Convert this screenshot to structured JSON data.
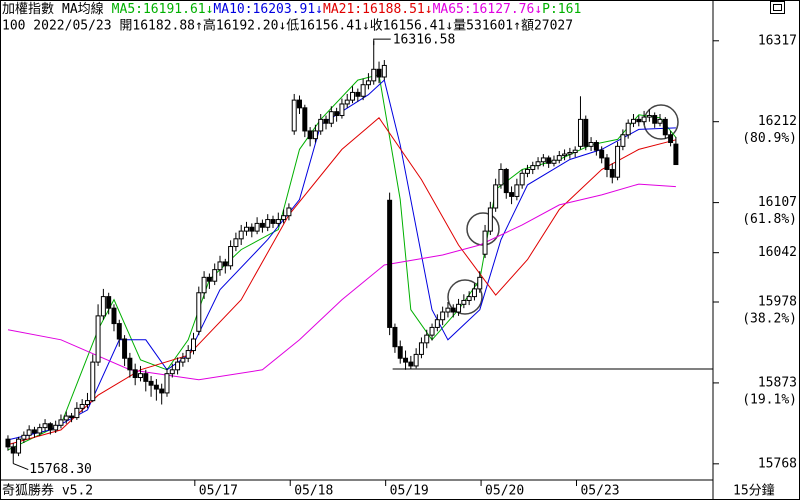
{
  "chart_data": {
    "type": "candlestick",
    "title": "加權指數",
    "subtitle": "MA均線",
    "extra": "P:161",
    "info": "100 2022/05/23 開16182.88↑高16192.20↓低16156.41↓收16156.41↓量531601↑額27027",
    "footer": "奇狐勝券 v5.2",
    "period": "15分鐘",
    "candle_colors": {
      "up_fill": "#ffffff",
      "down_fill": "#000000",
      "outline": "#000000"
    },
    "xlim": [
      -1.5,
      133
    ],
    "xticks": [
      {
        "value": 36,
        "label": "05/17"
      },
      {
        "value": 54,
        "label": "05/18"
      },
      {
        "value": 72,
        "label": "05/19"
      },
      {
        "value": 90,
        "label": "05/20"
      },
      {
        "value": 108,
        "label": "05/23"
      }
    ],
    "ylim": [
      15747,
      16331
    ],
    "yticks": [
      15768,
      15873,
      15978,
      16042,
      16107,
      16212,
      16317
    ],
    "fib_labels": [
      {
        "value": 15873,
        "label": "(19.1%)"
      },
      {
        "value": 15978,
        "label": "(38.2%)"
      },
      {
        "value": 16107,
        "label": "(61.8%)"
      },
      {
        "value": 16212,
        "label": "(80.9%)"
      }
    ],
    "horizontal_line": 15891,
    "annotations": [
      {
        "value": 16316.58,
        "label": "16316.58",
        "x": 69
      },
      {
        "value": 15768.3,
        "label": "15768.30",
        "x": 1
      }
    ],
    "open": [
      15800,
      15790,
      15782,
      15800,
      15805,
      15812,
      15808,
      15815,
      15820,
      15812,
      15818,
      15825,
      15830,
      15828,
      15840,
      15845,
      15850,
      15900,
      15960,
      15985,
      15970,
      15950,
      15930,
      15905,
      15890,
      15880,
      15885,
      15875,
      15870,
      15865,
      15860,
      15885,
      15890,
      15900,
      15905,
      15915,
      15940,
      15990,
      16010,
      16005,
      16020,
      16030,
      16025,
      16050,
      16060,
      16070,
      16075,
      16070,
      16080,
      16075,
      16085,
      16080,
      16085,
      16090,
      16200,
      16240,
      16230,
      16200,
      16190,
      16200,
      16215,
      16210,
      16225,
      16220,
      16235,
      16240,
      16250,
      16245,
      16260,
      16265,
      16280,
      16270,
      16110,
      15945,
      15920,
      15905,
      15900,
      15895,
      15910,
      15925,
      15935,
      15945,
      15955,
      15965,
      15970,
      15965,
      15975,
      15980,
      15985,
      15995,
      16040,
      16070,
      16100,
      16130,
      16150,
      16120,
      16115,
      16130,
      16145,
      16150,
      16155,
      16160,
      16165,
      16158,
      16162,
      16168,
      16170,
      16172,
      16180,
      16215,
      16180,
      16185,
      16175,
      16165,
      16150,
      16140,
      16180,
      16195,
      16210,
      16215,
      16212,
      16218,
      16220,
      16210,
      16215,
      16195,
      16182.88
    ],
    "high": [
      15805,
      15795,
      15803,
      15810,
      15818,
      15816,
      15820,
      15826,
      15822,
      15824,
      15832,
      15836,
      15834,
      15848,
      15852,
      15860,
      15910,
      15975,
      15995,
      15990,
      15975,
      15955,
      15935,
      15912,
      15898,
      15895,
      15890,
      15882,
      15878,
      15872,
      15892,
      15898,
      15906,
      15912,
      15922,
      15938,
      15998,
      16018,
      16015,
      16028,
      16038,
      16034,
      16058,
      16068,
      16078,
      16082,
      16080,
      16088,
      16085,
      16092,
      16090,
      16094,
      16098,
      16106,
      16248,
      16246,
      16234,
      16205,
      16208,
      16222,
      16220,
      16232,
      16230,
      16242,
      16248,
      16258,
      16255,
      16268,
      16275,
      16316.58,
      16290,
      16292,
      16120,
      15950,
      15928,
      15915,
      15908,
      15918,
      15932,
      15942,
      15950,
      15962,
      15972,
      15978,
      15975,
      15982,
      15988,
      15992,
      16002,
      16018,
      16078,
      16108,
      16138,
      16158,
      16152,
      16128,
      16138,
      16150,
      16156,
      16160,
      16166,
      16170,
      16168,
      16168,
      16174,
      16176,
      16178,
      16180,
      16245,
      16220,
      16192,
      16188,
      16180,
      16170,
      16158,
      16186,
      16202,
      16215,
      16222,
      16220,
      16226,
      16228,
      16224,
      16222,
      16218,
      16200,
      16192.2
    ],
    "low": [
      15785,
      15768.3,
      15778,
      15795,
      15800,
      15802,
      15804,
      15810,
      15806,
      15808,
      15814,
      15820,
      15822,
      15825,
      15835,
      15840,
      15848,
      15895,
      15955,
      15962,
      15940,
      15920,
      15895,
      15880,
      15870,
      15875,
      15862,
      15855,
      15850,
      15845,
      15855,
      15880,
      15884,
      15894,
      15900,
      15910,
      15935,
      15982,
      15995,
      16000,
      16012,
      16015,
      16020,
      16044,
      16052,
      16064,
      16062,
      16066,
      16068,
      16070,
      16074,
      16076,
      16080,
      16084,
      16195,
      16222,
      16192,
      16180,
      16185,
      16195,
      16202,
      16205,
      16212,
      16216,
      16230,
      16236,
      16238,
      16240,
      16254,
      16260,
      16262,
      16266,
      15935,
      15912,
      15898,
      15890,
      15891,
      15892,
      15905,
      15918,
      15928,
      15940,
      15948,
      15958,
      15958,
      15960,
      15970,
      15974,
      15980,
      15990,
      16035,
      16065,
      16095,
      16125,
      16112,
      16105,
      16110,
      16125,
      16140,
      16144,
      16150,
      16154,
      16152,
      16154,
      16158,
      16162,
      16164,
      16166,
      16176,
      16175,
      16174,
      16168,
      16158,
      16140,
      16132,
      16136,
      16175,
      16190,
      16205,
      16206,
      16208,
      16212,
      16204,
      16206,
      16190,
      16180,
      16156.41
    ],
    "close": [
      15790,
      15782,
      15800,
      15805,
      15812,
      15808,
      15815,
      15820,
      15812,
      15818,
      15825,
      15830,
      15828,
      15840,
      15845,
      15850,
      15900,
      15960,
      15985,
      15970,
      15950,
      15930,
      15905,
      15890,
      15880,
      15885,
      15875,
      15870,
      15865,
      15860,
      15885,
      15890,
      15900,
      15905,
      15915,
      15930,
      15990,
      16010,
      16005,
      16020,
      16030,
      16025,
      16050,
      16060,
      16070,
      16075,
      16070,
      16080,
      16075,
      16085,
      16080,
      16085,
      16090,
      16100,
      16240,
      16230,
      16200,
      16190,
      16200,
      16215,
      16210,
      16225,
      16220,
      16235,
      16240,
      16250,
      16245,
      16260,
      16265,
      16280,
      16270,
      16285,
      15945,
      15920,
      15905,
      15900,
      15895,
      15910,
      15925,
      15935,
      15945,
      15955,
      15965,
      15970,
      15965,
      15975,
      15980,
      15985,
      15995,
      16010,
      16070,
      16100,
      16130,
      16150,
      16120,
      16115,
      16130,
      16145,
      16150,
      16155,
      16160,
      16165,
      16158,
      16162,
      16168,
      16170,
      16172,
      16175,
      16215,
      16180,
      16185,
      16175,
      16165,
      16150,
      16140,
      16180,
      16195,
      16210,
      16215,
      16212,
      16218,
      16220,
      16210,
      16215,
      16195,
      16185,
      16156.41
    ],
    "series": [
      {
        "name": "MA5:16191.61↓",
        "color": "#00b000",
        "x": [
          0,
          10,
          17,
          20,
          25,
          30,
          34,
          38,
          44,
          51,
          55,
          59,
          66,
          70,
          74,
          76,
          80,
          85,
          89,
          92,
          97,
          104,
          110,
          115,
          119,
          123,
          126
        ],
        "values": [
          15786,
          15819,
          15942,
          15981,
          15903,
          15890,
          15929,
          16007,
          16046,
          16072,
          16176,
          16215,
          16266,
          16273,
          16111,
          15968,
          15929,
          15968,
          16007,
          16124,
          16150,
          16163,
          16182,
          16189,
          16221,
          16217,
          16191.61
        ]
      },
      {
        "name": "MA10:16203.91↓",
        "color": "#0000e0",
        "x": [
          0,
          8,
          15,
          21,
          26,
          30,
          34,
          40,
          49,
          55,
          59,
          68,
          71,
          74,
          80,
          83,
          89,
          93,
          98,
          106,
          112,
          119,
          126
        ],
        "values": [
          15799,
          15812,
          15838,
          15929,
          15929,
          15890,
          15909,
          15994,
          16059,
          16111,
          16208,
          16247,
          16266,
          16182,
          15968,
          15929,
          15968,
          16059,
          16130,
          16163,
          16176,
          16202,
          16203.91
        ]
      },
      {
        "name": "MA21:16188.51↓",
        "color": "#e00000",
        "x": [
          0,
          10,
          17,
          25,
          34,
          44,
          53,
          63,
          70,
          78,
          85,
          92,
          98,
          104,
          112,
          119,
          126
        ],
        "values": [
          15793,
          15812,
          15857,
          15890,
          15909,
          15981,
          16091,
          16176,
          16217,
          16137,
          16052,
          15987,
          16033,
          16098,
          16150,
          16176,
          16188.51
        ]
      },
      {
        "name": "MA65:16127.76↓",
        "color": "#e000e0",
        "x": [
          0,
          10,
          23,
          36,
          48,
          55,
          63,
          71,
          82,
          89,
          97,
          104,
          112,
          119,
          126
        ],
        "values": [
          15942,
          15929,
          15890,
          15877,
          15890,
          15929,
          15981,
          16026,
          16039,
          16052,
          16078,
          16104,
          16117,
          16131,
          16127.76
        ]
      }
    ]
  }
}
